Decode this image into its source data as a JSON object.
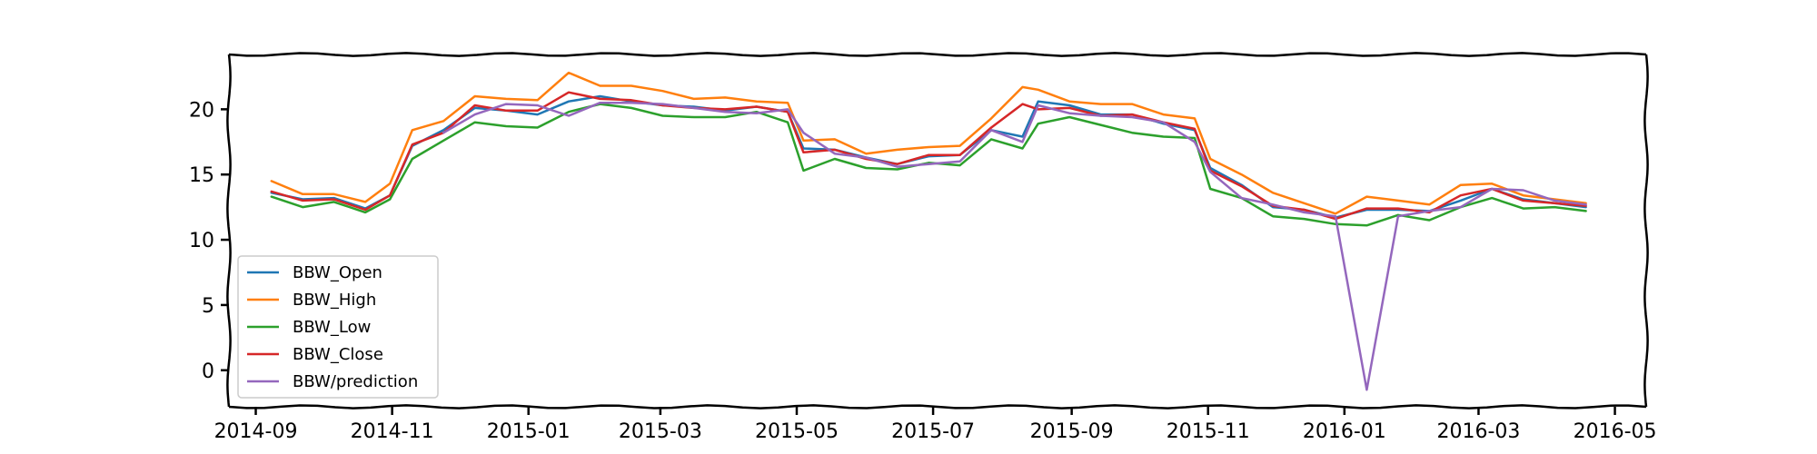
{
  "chart_data": {
    "type": "line",
    "title": "",
    "xlabel": "",
    "ylabel": "",
    "x_axis": {
      "type": "date",
      "range": [
        "2014-08-20",
        "2016-05-15"
      ],
      "ticks": [
        "2014-09-01",
        "2014-11-01",
        "2015-01-01",
        "2015-03-01",
        "2015-05-01",
        "2015-07-01",
        "2015-09-01",
        "2015-11-01",
        "2016-01-01",
        "2016-03-01",
        "2016-05-01"
      ],
      "tick_labels": [
        "2014-09",
        "2014-11",
        "2015-01",
        "2015-03",
        "2015-05",
        "2015-07",
        "2015-09",
        "2015-11",
        "2016-01",
        "2016-03",
        "2016-05"
      ]
    },
    "y_axis": {
      "range": [
        -2.8,
        24.2
      ],
      "ticks": [
        0,
        5,
        10,
        15,
        20
      ],
      "tick_labels": [
        "0",
        "5",
        "10",
        "15",
        "20"
      ]
    },
    "grid": false,
    "legend_position": "bottom-left",
    "x": [
      "2014-09-08",
      "2014-09-22",
      "2014-10-06",
      "2014-10-20",
      "2014-10-31",
      "2014-11-10",
      "2014-11-24",
      "2014-12-08",
      "2014-12-22",
      "2015-01-05",
      "2015-01-19",
      "2015-02-02",
      "2015-02-16",
      "2015-03-02",
      "2015-03-16",
      "2015-03-30",
      "2015-04-13",
      "2015-04-27",
      "2015-05-04",
      "2015-05-18",
      "2015-06-01",
      "2015-06-15",
      "2015-06-29",
      "2015-07-13",
      "2015-07-27",
      "2015-08-10",
      "2015-08-17",
      "2015-08-31",
      "2015-09-14",
      "2015-09-28",
      "2015-10-12",
      "2015-10-26",
      "2015-11-02",
      "2015-11-16",
      "2015-11-30",
      "2015-12-14",
      "2015-12-28",
      "2016-01-11",
      "2016-01-25",
      "2016-02-08",
      "2016-02-22",
      "2016-03-07",
      "2016-03-21",
      "2016-04-04",
      "2016-04-18"
    ],
    "series": [
      {
        "name": "BBW_Open",
        "color": "#1f77b4",
        "values": [
          13.6,
          13.1,
          13.2,
          12.4,
          13.4,
          17.2,
          18.4,
          20.1,
          19.9,
          19.6,
          20.6,
          21.0,
          20.6,
          20.3,
          20.2,
          19.9,
          20.2,
          19.8,
          17.0,
          16.9,
          16.3,
          15.8,
          16.4,
          16.5,
          18.4,
          17.9,
          20.6,
          20.3,
          19.6,
          19.6,
          18.9,
          18.4,
          15.5,
          14.2,
          12.5,
          12.3,
          11.7,
          12.3,
          12.3,
          12.2,
          13.0,
          13.9,
          13.1,
          12.8,
          12.5
        ]
      },
      {
        "name": "BBW_High",
        "color": "#ff7f0e",
        "values": [
          14.5,
          13.5,
          13.5,
          12.9,
          14.3,
          18.4,
          19.1,
          21.0,
          20.8,
          20.7,
          22.8,
          21.8,
          21.8,
          21.4,
          20.8,
          20.9,
          20.6,
          20.5,
          17.6,
          17.7,
          16.6,
          16.9,
          17.1,
          17.2,
          19.3,
          21.7,
          21.5,
          20.6,
          20.4,
          20.4,
          19.6,
          19.3,
          16.2,
          15.0,
          13.6,
          12.8,
          12.0,
          13.3,
          13.0,
          12.7,
          14.2,
          14.3,
          13.4,
          13.1,
          12.8
        ]
      },
      {
        "name": "BBW_Low",
        "color": "#2ca02c",
        "values": [
          13.3,
          12.5,
          12.9,
          12.1,
          13.1,
          16.2,
          17.6,
          19.0,
          18.7,
          18.6,
          19.8,
          20.4,
          20.1,
          19.5,
          19.4,
          19.4,
          19.8,
          19.0,
          15.3,
          16.2,
          15.5,
          15.4,
          15.9,
          15.7,
          17.7,
          17.0,
          18.9,
          19.4,
          18.8,
          18.2,
          17.9,
          17.8,
          13.9,
          13.2,
          11.8,
          11.6,
          11.2,
          11.1,
          11.9,
          11.5,
          12.5,
          13.2,
          12.4,
          12.5,
          12.2
        ]
      },
      {
        "name": "BBW_Close",
        "color": "#d62728",
        "values": [
          13.7,
          13.0,
          13.1,
          12.3,
          13.4,
          17.3,
          18.2,
          20.3,
          19.9,
          19.9,
          21.3,
          20.8,
          20.7,
          20.3,
          20.1,
          20.0,
          20.2,
          19.8,
          16.7,
          16.9,
          16.2,
          15.8,
          16.5,
          16.5,
          18.6,
          20.4,
          20.0,
          20.1,
          19.5,
          19.6,
          19.0,
          18.5,
          15.3,
          14.1,
          12.6,
          12.3,
          11.6,
          12.4,
          12.4,
          12.1,
          13.4,
          13.9,
          13.0,
          12.8,
          12.6
        ]
      },
      {
        "name": "BBW/prediction",
        "color": "#9467bd",
        "values": [
          null,
          null,
          null,
          null,
          null,
          null,
          18.2,
          19.6,
          20.4,
          20.3,
          19.5,
          20.5,
          20.5,
          20.4,
          20.1,
          19.8,
          19.7,
          20.0,
          18.2,
          16.6,
          16.3,
          15.6,
          15.8,
          16.0,
          18.4,
          17.5,
          20.3,
          19.7,
          19.5,
          19.4,
          19.0,
          17.5,
          15.2,
          13.2,
          12.7,
          12.1,
          11.8,
          -1.5,
          11.8,
          12.2,
          12.5,
          13.9,
          13.8,
          13.0,
          12.7
        ]
      }
    ]
  }
}
